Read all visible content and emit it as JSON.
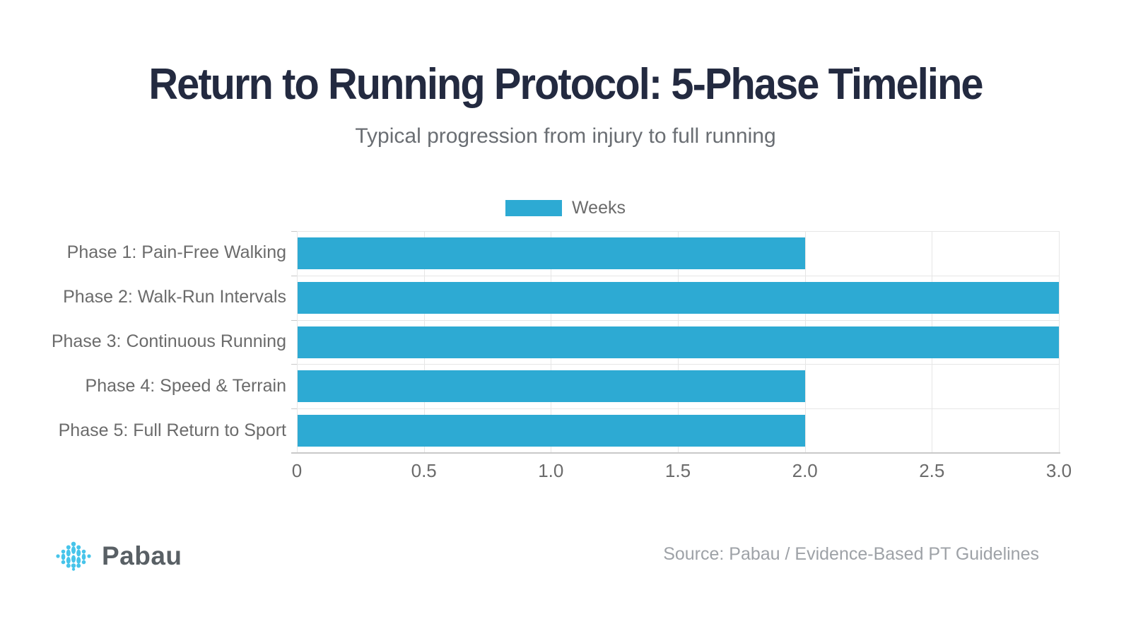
{
  "header": {
    "title": "Return to Running Protocol: 5-Phase Timeline",
    "subtitle": "Typical progression from injury to full running"
  },
  "legend": {
    "label": "Weeks"
  },
  "chart_data": {
    "type": "bar",
    "orientation": "horizontal",
    "title": "Return to Running Protocol: 5-Phase Timeline",
    "subtitle": "Typical progression from injury to full running",
    "categories": [
      "Phase 1: Pain-Free Walking",
      "Phase 2: Walk-Run Intervals",
      "Phase 3: Continuous Running",
      "Phase 4: Speed & Terrain",
      "Phase 5: Full Return to Sport"
    ],
    "series": [
      {
        "name": "Weeks",
        "values": [
          2,
          3,
          3,
          2,
          2
        ]
      }
    ],
    "xlabel": "",
    "ylabel": "",
    "xlim": [
      0,
      3
    ],
    "xtick_labels": [
      "0",
      "0.5",
      "1.0",
      "1.5",
      "2.0",
      "2.5",
      "3.0"
    ],
    "grid": true,
    "legend_position": "top-center",
    "bar_color": "#2DAAD3"
  },
  "footer": {
    "logo_text": "Pabau",
    "source": "Source: Pabau / Evidence-Based PT Guidelines"
  },
  "colors": {
    "accent": "#2DAAD3",
    "title": "#232A40",
    "subtitle": "#6A6E73",
    "label": "#6B6B6B",
    "grid": "#E6E6E6",
    "axis": "#C9C9C9",
    "source": "#9EA2A7",
    "logo_blue": "#47C4EA",
    "logo_text": "#596065"
  }
}
